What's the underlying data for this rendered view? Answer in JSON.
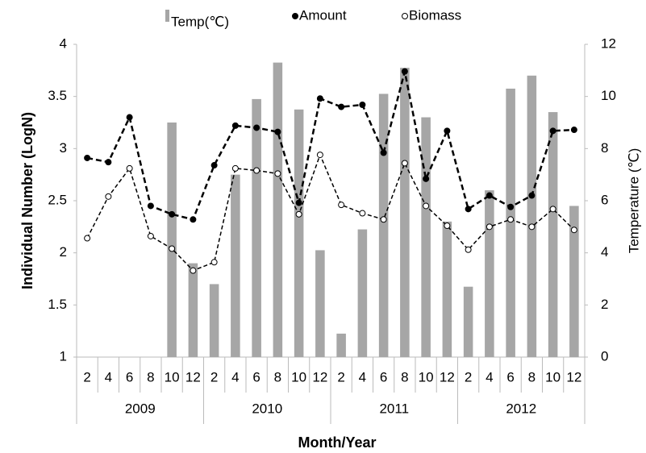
{
  "chart_data": {
    "type": "bar_line",
    "y_label": "Individual Number  (LogN)",
    "y2_label": "Temperature (℃)",
    "x_label": "Month/Year",
    "categories": [
      "2",
      "4",
      "6",
      "8",
      "10",
      "12",
      "2",
      "4",
      "6",
      "8",
      "10",
      "12",
      "2",
      "4",
      "6",
      "8",
      "10",
      "12",
      "2",
      "4",
      "6",
      "8",
      "10",
      "12"
    ],
    "groups": [
      "2009",
      "2010",
      "2011",
      "2012"
    ],
    "ylim": [
      1,
      4
    ],
    "yticks": [
      1,
      1.5,
      2,
      2.5,
      3,
      3.5,
      4
    ],
    "y2lim": [
      0,
      12
    ],
    "y2ticks": [
      0,
      2,
      4,
      6,
      8,
      10,
      12
    ],
    "legend": "top",
    "series": [
      {
        "name": "Temp(℃)",
        "type": "bar",
        "axis": "y2",
        "color": "#a6a6a6",
        "values": [
          null,
          null,
          null,
          null,
          9.0,
          3.6,
          2.8,
          7.0,
          9.9,
          11.3,
          9.5,
          4.1,
          0.9,
          4.9,
          10.1,
          11.1,
          9.2,
          5.2,
          2.7,
          6.4,
          10.3,
          10.8,
          9.4,
          5.8
        ]
      },
      {
        "name": "Amount",
        "type": "line",
        "color": "#000000",
        "marker": "filled",
        "line_style": "dashed",
        "values": [
          2.91,
          2.87,
          3.3,
          2.45,
          2.37,
          2.32,
          2.84,
          3.22,
          3.2,
          3.16,
          2.48,
          3.48,
          3.4,
          3.42,
          2.96,
          3.74,
          2.71,
          3.17,
          2.42,
          2.55,
          2.44,
          2.55,
          3.17,
          3.18
        ]
      },
      {
        "name": "Biomass",
        "type": "line",
        "color": "#000000",
        "marker": "open",
        "line_style": "dashed",
        "values": [
          2.14,
          2.54,
          2.81,
          2.16,
          2.04,
          1.83,
          1.91,
          2.81,
          2.79,
          2.76,
          2.37,
          2.94,
          2.46,
          2.38,
          2.32,
          2.86,
          2.45,
          2.26,
          2.03,
          2.25,
          2.32,
          2.25,
          2.42,
          2.22
        ]
      }
    ]
  }
}
